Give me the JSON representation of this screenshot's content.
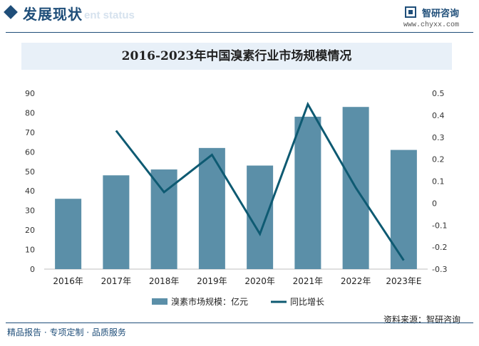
{
  "header": {
    "section_title": "发展现状",
    "section_subtitle": "ent status",
    "brand_name": "智研咨询",
    "brand_url": "www.chyxx.com"
  },
  "chart_data": {
    "type": "bar",
    "title": "2016-2023年中国溴素行业市场规模情况",
    "categories": [
      "2016年",
      "2017年",
      "2018年",
      "2019年",
      "2020年",
      "2021年",
      "2022年",
      "2023年E"
    ],
    "series": [
      {
        "name": "溴素市场规模：亿元",
        "type": "bar",
        "axis": "left",
        "values": [
          36,
          48,
          51,
          62,
          53,
          78,
          83,
          61
        ]
      },
      {
        "name": "同比增长",
        "type": "line",
        "axis": "right",
        "values": [
          null,
          0.33,
          0.05,
          0.22,
          -0.14,
          0.45,
          0.07,
          -0.26
        ]
      }
    ],
    "y_left": {
      "ylim": [
        0,
        90
      ],
      "ticks": [
        "0",
        "10",
        "20",
        "30",
        "40",
        "50",
        "60",
        "70",
        "80",
        "90"
      ]
    },
    "y_right": {
      "ylim": [
        -0.3,
        0.5
      ],
      "ticks": [
        "-0.3",
        "-0.2",
        "-0.1",
        "0",
        "0.1",
        "0.2",
        "0.3",
        "0.4",
        "0.5"
      ]
    },
    "legend_position": "bottom",
    "colors": {
      "bar": "#5b8fa8",
      "line": "#0e5a72"
    }
  },
  "footer": {
    "left_text": "精品报告 · 专项定制 · 品质服务",
    "source": "资料来源：智研咨询"
  }
}
